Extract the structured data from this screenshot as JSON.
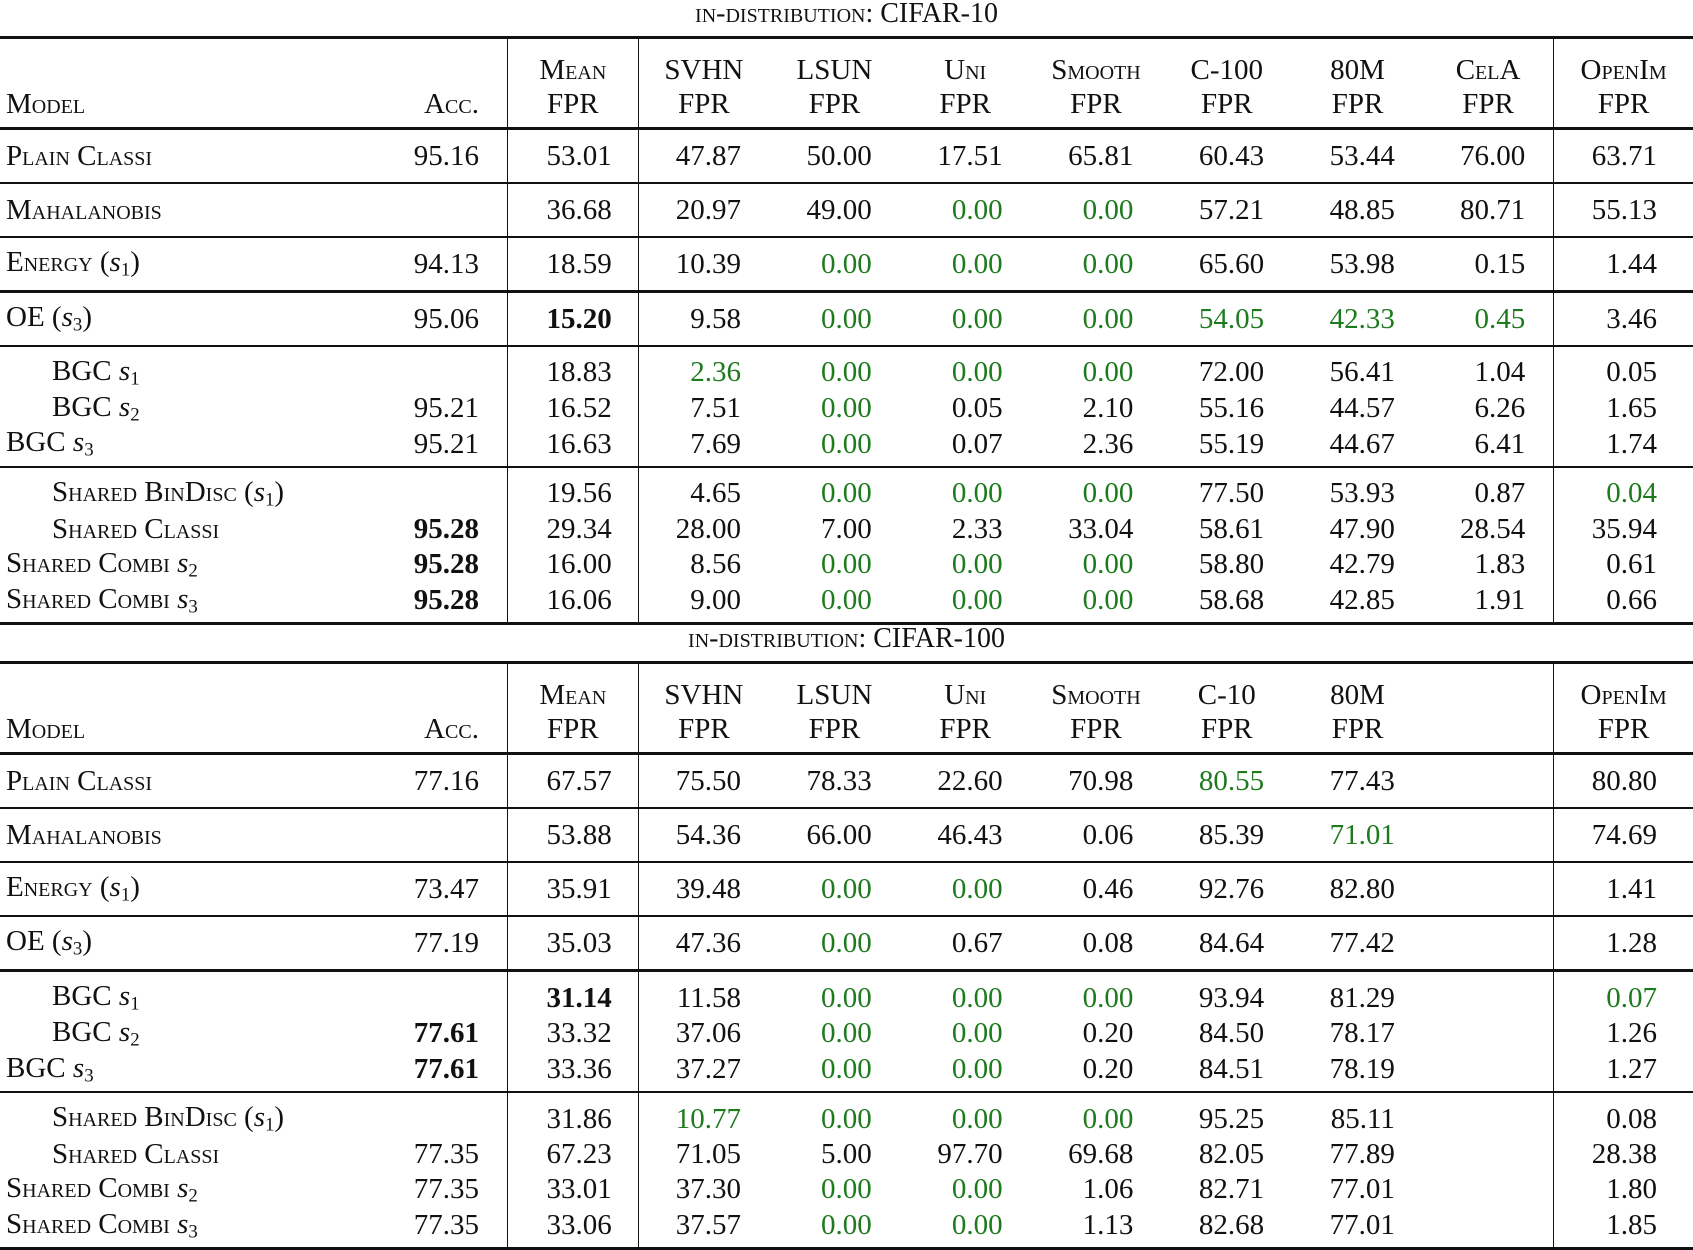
{
  "tables": [
    {
      "caption_prefix": "in-distribution:",
      "caption_dataset": "CIFAR-10",
      "headers": {
        "model": "Model",
        "acc": "Acc.",
        "columns": [
          {
            "top": "Mean",
            "bottom": "FPR"
          },
          {
            "top": "SVHN",
            "bottom": "FPR"
          },
          {
            "top": "LSUN",
            "bottom": "FPR"
          },
          {
            "top": "Uni",
            "bottom": "FPR"
          },
          {
            "top": "Smooth",
            "bottom": "FPR"
          },
          {
            "top": "C-100",
            "bottom": "FPR"
          },
          {
            "top": "80M",
            "bottom": "FPR"
          },
          {
            "top": "CelA",
            "bottom": "FPR"
          },
          {
            "top": "OpenIm",
            "bottom": "FPR"
          }
        ]
      },
      "rows": [
        {
          "model": "Plain Classi",
          "sub": "",
          "paren": false,
          "acc": "95.16",
          "values": [
            "53.01",
            "47.87",
            "50.00",
            "17.51",
            "65.81",
            "60.43",
            "53.44",
            "76.00",
            "63.71"
          ]
        },
        {
          "model": "Mahalanobis",
          "sub": "",
          "paren": false,
          "acc": "",
          "values": [
            "36.68",
            "20.97",
            "49.00",
            "0.00",
            "0.00",
            "57.21",
            "48.85",
            "80.71",
            "55.13"
          ]
        },
        {
          "model": "Energy",
          "sub": "1",
          "paren": true,
          "acc": "94.13",
          "values": [
            "18.59",
            "10.39",
            "0.00",
            "0.00",
            "0.00",
            "65.60",
            "53.98",
            "0.15",
            "1.44"
          ]
        },
        {
          "model": "OE",
          "sub": "3",
          "paren": true,
          "acc": "95.06",
          "values": [
            "15.20",
            "9.58",
            "0.00",
            "0.00",
            "0.00",
            "54.05",
            "42.33",
            "0.45",
            "3.46"
          ]
        },
        {
          "model": "BGC",
          "sub": "1",
          "paren": false,
          "acc": "",
          "values": [
            "18.83",
            "2.36",
            "0.00",
            "0.00",
            "0.00",
            "72.00",
            "56.41",
            "1.04",
            "0.05"
          ]
        },
        {
          "model": "BGC",
          "sub": "2",
          "paren": false,
          "acc": "95.21",
          "values": [
            "16.52",
            "7.51",
            "0.00",
            "0.05",
            "2.10",
            "55.16",
            "44.57",
            "6.26",
            "1.65"
          ]
        },
        {
          "model": "BGC",
          "sub": "3",
          "paren": false,
          "acc": "95.21",
          "values": [
            "16.63",
            "7.69",
            "0.00",
            "0.07",
            "2.36",
            "55.19",
            "44.67",
            "6.41",
            "1.74"
          ]
        },
        {
          "model": "Shared BinDisc",
          "sub": "1",
          "paren": true,
          "acc": "",
          "values": [
            "19.56",
            "4.65",
            "0.00",
            "0.00",
            "0.00",
            "77.50",
            "53.93",
            "0.87",
            "0.04"
          ]
        },
        {
          "model": "Shared Classi",
          "sub": "",
          "paren": false,
          "acc": "95.28",
          "values": [
            "29.34",
            "28.00",
            "7.00",
            "2.33",
            "33.04",
            "58.61",
            "47.90",
            "28.54",
            "35.94"
          ]
        },
        {
          "model": "Shared Combi",
          "sub": "2",
          "paren": false,
          "acc": "95.28",
          "values": [
            "16.00",
            "8.56",
            "0.00",
            "0.00",
            "0.00",
            "58.80",
            "42.79",
            "1.83",
            "0.61"
          ]
        },
        {
          "model": "Shared Combi",
          "sub": "3",
          "paren": false,
          "acc": "95.28",
          "values": [
            "16.06",
            "9.00",
            "0.00",
            "0.00",
            "0.00",
            "58.68",
            "42.85",
            "1.91",
            "0.66"
          ]
        }
      ]
    },
    {
      "caption_prefix": "in-distribution:",
      "caption_dataset": "CIFAR-100",
      "headers": {
        "model": "Model",
        "acc": "Acc.",
        "columns": [
          {
            "top": "Mean",
            "bottom": "FPR"
          },
          {
            "top": "SVHN",
            "bottom": "FPR"
          },
          {
            "top": "LSUN",
            "bottom": "FPR"
          },
          {
            "top": "Uni",
            "bottom": "FPR"
          },
          {
            "top": "Smooth",
            "bottom": "FPR"
          },
          {
            "top": "C-10",
            "bottom": "FPR"
          },
          {
            "top": "80M",
            "bottom": "FPR"
          },
          {
            "top": "",
            "bottom": ""
          },
          {
            "top": "OpenIm",
            "bottom": "FPR"
          }
        ]
      },
      "rows": [
        {
          "model": "Plain Classi",
          "sub": "",
          "paren": false,
          "acc": "77.16",
          "values": [
            "67.57",
            "75.50",
            "78.33",
            "22.60",
            "70.98",
            "80.55",
            "77.43",
            "",
            "80.80"
          ]
        },
        {
          "model": "Mahalanobis",
          "sub": "",
          "paren": false,
          "acc": "",
          "values": [
            "53.88",
            "54.36",
            "66.00",
            "46.43",
            "0.06",
            "85.39",
            "71.01",
            "",
            "74.69"
          ]
        },
        {
          "model": "Energy",
          "sub": "1",
          "paren": true,
          "acc": "73.47",
          "values": [
            "35.91",
            "39.48",
            "0.00",
            "0.00",
            "0.46",
            "92.76",
            "82.80",
            "",
            "1.41"
          ]
        },
        {
          "model": "OE",
          "sub": "3",
          "paren": true,
          "acc": "77.19",
          "values": [
            "35.03",
            "47.36",
            "0.00",
            "0.67",
            "0.08",
            "84.64",
            "77.42",
            "",
            "1.28"
          ]
        },
        {
          "model": "BGC",
          "sub": "1",
          "paren": false,
          "acc": "",
          "values": [
            "31.14",
            "11.58",
            "0.00",
            "0.00",
            "0.00",
            "93.94",
            "81.29",
            "",
            "0.07"
          ]
        },
        {
          "model": "BGC",
          "sub": "2",
          "paren": false,
          "acc": "77.61",
          "values": [
            "33.32",
            "37.06",
            "0.00",
            "0.00",
            "0.20",
            "84.50",
            "78.17",
            "",
            "1.26"
          ]
        },
        {
          "model": "BGC",
          "sub": "3",
          "paren": false,
          "acc": "77.61",
          "values": [
            "33.36",
            "37.27",
            "0.00",
            "0.00",
            "0.20",
            "84.51",
            "78.19",
            "",
            "1.27"
          ]
        },
        {
          "model": "Shared BinDisc",
          "sub": "1",
          "paren": true,
          "acc": "",
          "values": [
            "31.86",
            "10.77",
            "0.00",
            "0.00",
            "0.00",
            "95.25",
            "85.11",
            "",
            "0.08"
          ]
        },
        {
          "model": "Shared Classi",
          "sub": "",
          "paren": false,
          "acc": "77.35",
          "values": [
            "67.23",
            "71.05",
            "5.00",
            "97.70",
            "69.68",
            "82.05",
            "77.89",
            "",
            "28.38"
          ]
        },
        {
          "model": "Shared Combi",
          "sub": "2",
          "paren": false,
          "acc": "77.35",
          "values": [
            "33.01",
            "37.30",
            "0.00",
            "0.00",
            "1.06",
            "82.71",
            "77.01",
            "",
            "1.80"
          ]
        },
        {
          "model": "Shared Combi",
          "sub": "3",
          "paren": false,
          "acc": "77.35",
          "values": [
            "33.06",
            "37.57",
            "0.00",
            "0.00",
            "1.13",
            "82.68",
            "77.01",
            "",
            "1.85"
          ]
        }
      ]
    }
  ],
  "highlight": {
    "green_color": "#1d7a1d",
    "green_cells_t0": [
      [
        1,
        3
      ],
      [
        1,
        4
      ],
      [
        2,
        2
      ],
      [
        2,
        3
      ],
      [
        2,
        4
      ],
      [
        3,
        2
      ],
      [
        3,
        3
      ],
      [
        3,
        4
      ],
      [
        3,
        5
      ],
      [
        3,
        6
      ],
      [
        3,
        7
      ],
      [
        4,
        1
      ],
      [
        4,
        2
      ],
      [
        4,
        3
      ],
      [
        4,
        4
      ],
      [
        5,
        2
      ],
      [
        6,
        2
      ],
      [
        7,
        2
      ],
      [
        7,
        3
      ],
      [
        7,
        4
      ],
      [
        7,
        8
      ],
      [
        9,
        2
      ],
      [
        9,
        3
      ],
      [
        9,
        4
      ],
      [
        10,
        2
      ],
      [
        10,
        3
      ],
      [
        10,
        4
      ]
    ],
    "bold_cells_t0": [
      [
        3,
        0
      ]
    ],
    "bold_acc_t0": [
      8,
      9,
      10
    ],
    "green_cells_t1": [
      [
        0,
        5
      ],
      [
        1,
        6
      ],
      [
        2,
        2
      ],
      [
        2,
        3
      ],
      [
        3,
        2
      ],
      [
        4,
        2
      ],
      [
        4,
        3
      ],
      [
        4,
        4
      ],
      [
        4,
        8
      ],
      [
        5,
        2
      ],
      [
        5,
        3
      ],
      [
        6,
        2
      ],
      [
        6,
        3
      ],
      [
        7,
        1
      ],
      [
        7,
        2
      ],
      [
        7,
        3
      ],
      [
        7,
        4
      ],
      [
        9,
        2
      ],
      [
        9,
        3
      ],
      [
        10,
        2
      ],
      [
        10,
        3
      ]
    ],
    "bold_cells_t1": [
      [
        4,
        0
      ]
    ],
    "bold_acc_t1": [
      5,
      6
    ]
  }
}
